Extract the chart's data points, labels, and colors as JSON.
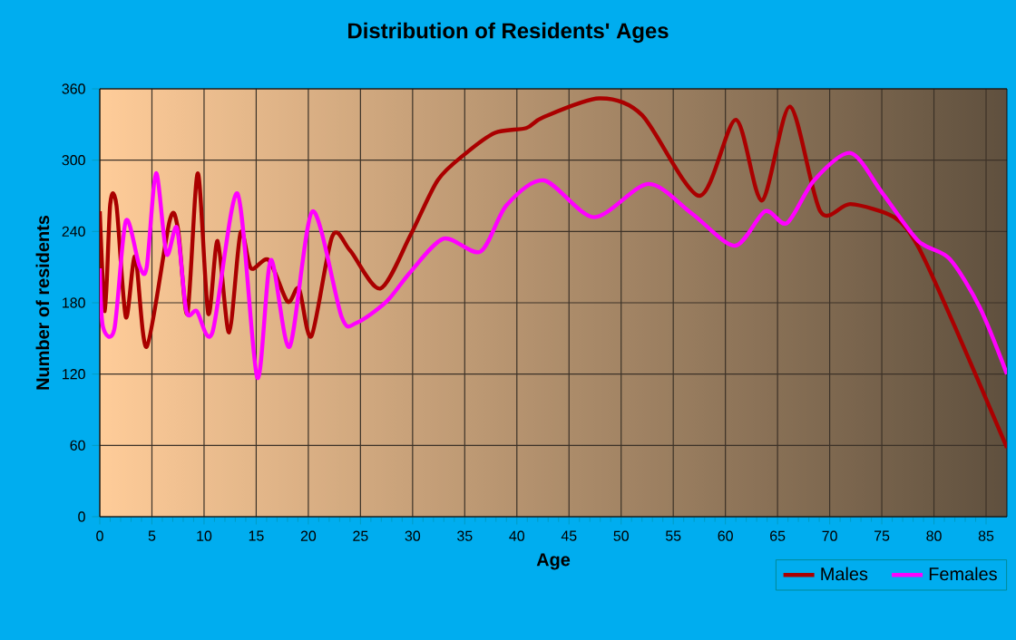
{
  "chart_data": {
    "type": "line",
    "title": "Distribution of Residents' Ages",
    "xlabel": "Age",
    "ylabel": "Number of residents",
    "xlim": [
      0,
      87
    ],
    "xticks": [
      0,
      5,
      10,
      15,
      20,
      25,
      30,
      35,
      40,
      45,
      50,
      55,
      60,
      65,
      70,
      75,
      80,
      85
    ],
    "ylim": [
      0,
      360
    ],
    "yticks": [
      0,
      60,
      120,
      180,
      240,
      300,
      360
    ],
    "grid": true,
    "legend": "bottom right",
    "marker": "none",
    "line_style": "solid",
    "series": [
      {
        "name": "Males",
        "color": "#aa0000",
        "x": [
          0,
          0.5,
          1,
          1.6,
          2.5,
          3.4,
          4.5,
          6.7,
          7.5,
          8.4,
          9.4,
          10.4,
          11.3,
          12.4,
          13.5,
          14.5,
          16.2,
          18,
          19.1,
          20.3,
          22.3,
          24,
          26.9,
          29.8,
          32.4,
          35,
          37.9,
          40.9,
          42.5,
          47.9,
          52,
          57.5,
          61,
          63.5,
          66.2,
          69.1,
          72,
          76.2,
          78.5,
          82,
          87
        ],
        "values": [
          257,
          173,
          263,
          262,
          168,
          219,
          143,
          249,
          242,
          171,
          289,
          171,
          232,
          155,
          239,
          209,
          216,
          181,
          192,
          152,
          236,
          224,
          192,
          237,
          283,
          305,
          323,
          327,
          336,
          352,
          338,
          270,
          334,
          266,
          345,
          257,
          263,
          252,
          227,
          160,
          58
        ]
      },
      {
        "name": "Females",
        "color": "#ff00ff",
        "x": [
          0,
          0.3,
          1.4,
          2.5,
          3.8,
          4.5,
          5.4,
          6.4,
          7.4,
          8.3,
          9.3,
          10.8,
          13.2,
          15.1,
          16.4,
          18.2,
          20.4,
          23.2,
          24.6,
          27.5,
          29.8,
          33,
          36.5,
          39,
          42.6,
          47.4,
          52.6,
          56.8,
          60.9,
          63.8,
          65.9,
          68.5,
          72,
          75,
          78.5,
          81.5,
          84.4,
          87
        ],
        "values": [
          209,
          160,
          158,
          249,
          211,
          210,
          289,
          221,
          243,
          173,
          173,
          155,
          272,
          117,
          216,
          143,
          257,
          168,
          163,
          181,
          206,
          234,
          223,
          262,
          283,
          252,
          280,
          255,
          228,
          257,
          247,
          283,
          306,
          273,
          232,
          217,
          176,
          120
        ]
      }
    ]
  }
}
